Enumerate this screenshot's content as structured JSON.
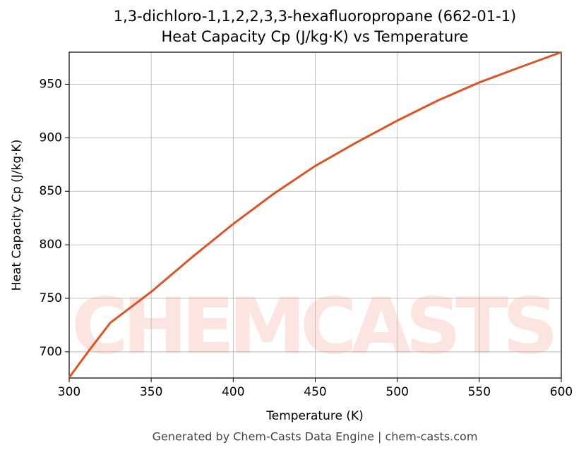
{
  "chart_data": {
    "type": "line",
    "title": "1,3-dichloro-1,1,2,2,3,3-hexafluoropropane (662-01-1)",
    "subtitle": "Heat Capacity Cp (J/kg·K) vs Temperature",
    "x_label": "Temperature (K)",
    "y_label": "Heat Capacity Cp (J/kg·K)",
    "footer": "Generated by Chem-Casts Data Engine | chem-casts.com",
    "watermark": "CHEMCASTS",
    "x": [
      300,
      312,
      325,
      350,
      375,
      400,
      425,
      450,
      475,
      500,
      525,
      550,
      575,
      600
    ],
    "series": [
      {
        "name": "Cp",
        "color": "#d95525",
        "values": [
          676,
          701,
          727,
          756,
          788.5,
          819.5,
          848,
          873.7,
          895.5,
          916,
          935,
          951.7,
          966,
          980
        ]
      }
    ],
    "xlim": [
      300,
      600
    ],
    "xticks": [
      300,
      350,
      400,
      450,
      500,
      550,
      600
    ],
    "ylim": [
      675.5,
      980
    ],
    "yticks": [
      700,
      750,
      800,
      850,
      900,
      950
    ],
    "grid": true
  }
}
